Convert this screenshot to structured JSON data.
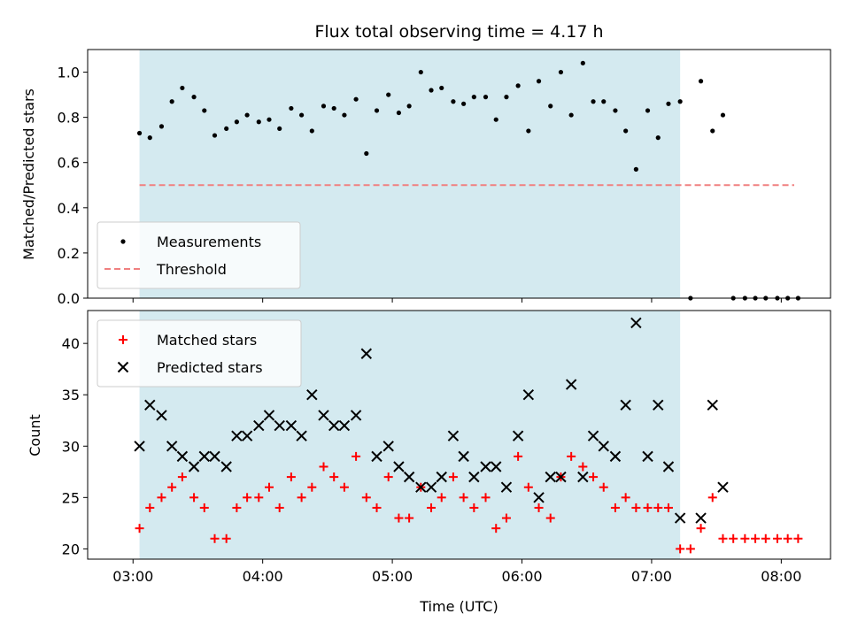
{
  "chart_data": [
    {
      "type": "scatter",
      "title": "Flux total observing time = 4.17 h",
      "xlabel": "",
      "ylabel": "Matched/Predicted stars",
      "ylim": [
        0,
        1.1
      ],
      "yticks": [
        0.0,
        0.2,
        0.4,
        0.6,
        0.8,
        1.0
      ],
      "ytick_labels": [
        "0.0",
        "0.2",
        "0.4",
        "0.6",
        "0.8",
        "1.0"
      ],
      "xlim": [
        2.65,
        8.38
      ],
      "xticks": [
        3,
        4,
        5,
        6,
        7,
        8
      ],
      "shaded_region": {
        "x": [
          3.05,
          7.22
        ],
        "color": "#d4eaf0"
      },
      "legend_position": "lower-left",
      "series": [
        {
          "name": "Measurements",
          "marker": "dot",
          "color": "#000000",
          "x": [
            3.05,
            3.13,
            3.22,
            3.3,
            3.38,
            3.47,
            3.55,
            3.63,
            3.72,
            3.8,
            3.88,
            3.97,
            4.05,
            4.13,
            4.22,
            4.3,
            4.38,
            4.47,
            4.55,
            4.63,
            4.72,
            4.8,
            4.88,
            4.97,
            5.05,
            5.13,
            5.22,
            5.3,
            5.38,
            5.47,
            5.55,
            5.63,
            5.72,
            5.8,
            5.88,
            5.97,
            6.05,
            6.13,
            6.22,
            6.3,
            6.38,
            6.47,
            6.55,
            6.63,
            6.72,
            6.8,
            6.88,
            6.97,
            7.05,
            7.13,
            7.22,
            7.3,
            7.38,
            7.47,
            7.55,
            7.63,
            7.72,
            7.8,
            7.88,
            7.97,
            8.05,
            8.13
          ],
          "y": [
            0.73,
            0.71,
            0.76,
            0.87,
            0.93,
            0.89,
            0.83,
            0.72,
            0.75,
            0.78,
            0.81,
            0.78,
            0.79,
            0.75,
            0.84,
            0.81,
            0.74,
            0.85,
            0.84,
            0.81,
            0.88,
            0.64,
            0.83,
            0.9,
            0.82,
            0.85,
            1.0,
            0.92,
            0.93,
            0.87,
            0.86,
            0.89,
            0.89,
            0.79,
            0.89,
            0.94,
            0.74,
            0.96,
            0.85,
            1.0,
            0.81,
            1.04,
            0.87,
            0.87,
            0.83,
            0.74,
            0.57,
            0.83,
            0.71,
            0.86,
            0.87,
            0.0,
            0.96,
            0.74,
            0.81,
            0.0,
            0.0,
            0.0,
            0.0,
            0.0,
            0.0,
            0.0
          ]
        },
        {
          "name": "Threshold",
          "line_style": "dashed",
          "color": "#f08080",
          "x": [
            3.05,
            8.1
          ],
          "y": [
            0.5,
            0.5
          ]
        }
      ]
    },
    {
      "type": "scatter",
      "title": "",
      "xlabel": "Time (UTC)",
      "ylabel": "Count",
      "ylim": [
        19,
        43.2
      ],
      "yticks": [
        20,
        25,
        30,
        35,
        40
      ],
      "ytick_labels": [
        "20",
        "25",
        "30",
        "35",
        "40"
      ],
      "xlim": [
        2.65,
        8.38
      ],
      "xticks": [
        3,
        4,
        5,
        6,
        7,
        8
      ],
      "xtick_labels": [
        "03:00",
        "04:00",
        "05:00",
        "06:00",
        "07:00",
        "08:00"
      ],
      "shaded_region": {
        "x": [
          3.05,
          7.22
        ],
        "color": "#d4eaf0"
      },
      "legend_position": "upper-left",
      "series": [
        {
          "name": "Matched stars",
          "marker": "plus",
          "color": "#ff0000",
          "x": [
            3.05,
            3.13,
            3.22,
            3.3,
            3.38,
            3.47,
            3.55,
            3.63,
            3.72,
            3.8,
            3.88,
            3.97,
            4.05,
            4.13,
            4.22,
            4.3,
            4.38,
            4.47,
            4.55,
            4.63,
            4.72,
            4.8,
            4.88,
            4.97,
            5.05,
            5.13,
            5.22,
            5.3,
            5.38,
            5.47,
            5.55,
            5.63,
            5.72,
            5.8,
            5.88,
            5.97,
            6.05,
            6.13,
            6.22,
            6.3,
            6.38,
            6.47,
            6.55,
            6.63,
            6.72,
            6.8,
            6.88,
            6.97,
            7.05,
            7.13,
            7.22,
            7.3,
            7.38,
            7.47,
            7.55,
            7.63,
            7.72,
            7.8,
            7.88,
            7.97,
            8.05,
            8.13
          ],
          "y": [
            22,
            24,
            25,
            26,
            27,
            25,
            24,
            21,
            21,
            24,
            25,
            25,
            26,
            24,
            27,
            25,
            26,
            28,
            27,
            26,
            29,
            25,
            24,
            27,
            23,
            23,
            26,
            24,
            25,
            27,
            25,
            24,
            25,
            22,
            23,
            29,
            26,
            24,
            23,
            27,
            29,
            28,
            27,
            26,
            24,
            25,
            24,
            24,
            24,
            24,
            20,
            20,
            22,
            25,
            21,
            21,
            21,
            21,
            21,
            21,
            21,
            21
          ]
        },
        {
          "name": "Predicted stars",
          "marker": "x",
          "color": "#000000",
          "x": [
            3.05,
            3.13,
            3.22,
            3.3,
            3.38,
            3.47,
            3.55,
            3.63,
            3.72,
            3.8,
            3.88,
            3.97,
            4.05,
            4.13,
            4.22,
            4.3,
            4.38,
            4.47,
            4.55,
            4.63,
            4.72,
            4.8,
            4.88,
            4.97,
            5.05,
            5.13,
            5.22,
            5.3,
            5.38,
            5.47,
            5.55,
            5.63,
            5.72,
            5.8,
            5.88,
            5.97,
            6.05,
            6.13,
            6.22,
            6.3,
            6.38,
            6.47,
            6.55,
            6.63,
            6.72,
            6.8,
            6.88,
            6.97,
            7.05,
            7.13,
            7.22,
            7.38,
            7.47,
            7.55
          ],
          "y": [
            30,
            34,
            33,
            30,
            29,
            28,
            29,
            29,
            28,
            31,
            31,
            32,
            33,
            32,
            32,
            31,
            35,
            33,
            32,
            32,
            33,
            39,
            29,
            30,
            28,
            27,
            26,
            26,
            27,
            31,
            29,
            27,
            28,
            28,
            26,
            31,
            35,
            25,
            27,
            27,
            36,
            27,
            31,
            30,
            29,
            34,
            42,
            29,
            34,
            28,
            23,
            23,
            34,
            26
          ]
        }
      ]
    }
  ]
}
